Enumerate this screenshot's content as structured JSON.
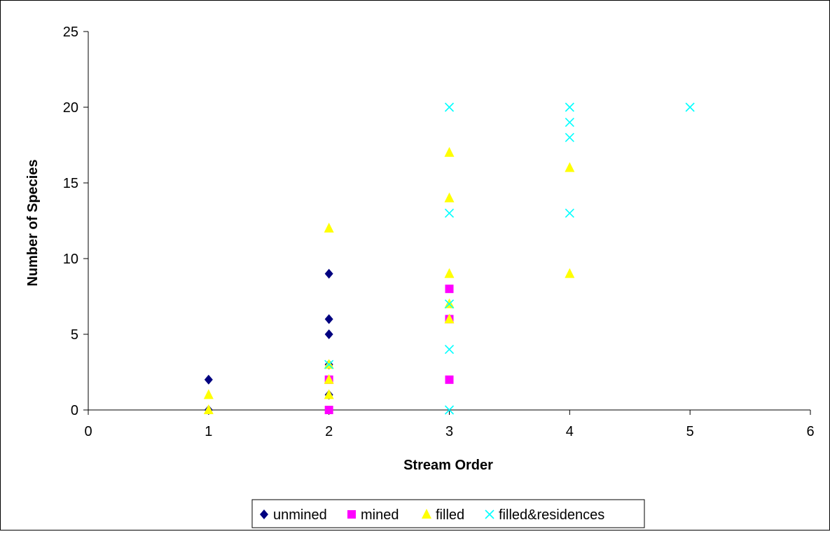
{
  "chart_data": {
    "type": "scatter",
    "title": "",
    "xlabel": "Stream Order",
    "ylabel": "Number of Species",
    "xlim": [
      0,
      6
    ],
    "ylim": [
      0,
      25
    ],
    "x_ticks": [
      0,
      1,
      2,
      3,
      4,
      5,
      6
    ],
    "y_ticks": [
      0,
      5,
      10,
      15,
      20,
      25
    ],
    "grid": false,
    "legend_position": "bottom",
    "series": [
      {
        "name": "unmined",
        "marker": "diamond",
        "color": "#000080",
        "points": [
          [
            1,
            2
          ],
          [
            1,
            0
          ],
          [
            2,
            9
          ],
          [
            2,
            6
          ],
          [
            2,
            5
          ],
          [
            2,
            1
          ],
          [
            2,
            3
          ]
        ]
      },
      {
        "name": "mined",
        "marker": "square",
        "color": "#FF00FF",
        "points": [
          [
            2,
            2
          ],
          [
            2,
            0
          ],
          [
            3,
            8
          ],
          [
            3,
            6
          ],
          [
            3,
            2
          ]
        ]
      },
      {
        "name": "filled",
        "marker": "triangle",
        "color": "#FFFF00",
        "points": [
          [
            1,
            1
          ],
          [
            1,
            0
          ],
          [
            2,
            12
          ],
          [
            2,
            3
          ],
          [
            2,
            2
          ],
          [
            2,
            1
          ],
          [
            3,
            17
          ],
          [
            3,
            14
          ],
          [
            3,
            9
          ],
          [
            3,
            7
          ],
          [
            3,
            6
          ],
          [
            4,
            16
          ],
          [
            4,
            9
          ]
        ]
      },
      {
        "name": "filled&residences",
        "marker": "x",
        "color": "#00FFFF",
        "points": [
          [
            2,
            3
          ],
          [
            3,
            20
          ],
          [
            3,
            13
          ],
          [
            3,
            7
          ],
          [
            3,
            4
          ],
          [
            3,
            0
          ],
          [
            4,
            20
          ],
          [
            4,
            19
          ],
          [
            4,
            18
          ],
          [
            4,
            13
          ],
          [
            5,
            20
          ]
        ]
      }
    ]
  }
}
